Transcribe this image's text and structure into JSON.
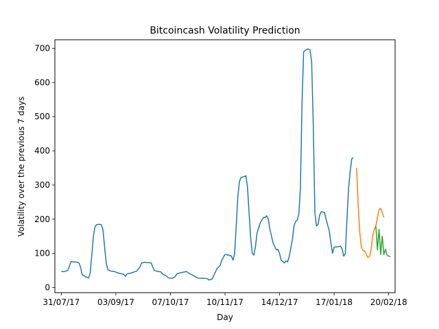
{
  "chart_data": {
    "type": "line",
    "title": "Bitcoincash Volatility Prediction",
    "xlabel": "Day",
    "ylabel": "Volatility over the previous 7 days",
    "xlim": [
      "2017-07-27",
      "2018-02-24"
    ],
    "ylim": [
      -15,
      725
    ],
    "x_ticks": [
      {
        "date": "2017-07-31",
        "label": "31/07/17"
      },
      {
        "date": "2017-09-03",
        "label": "03/09/17"
      },
      {
        "date": "2017-10-07",
        "label": "07/10/17"
      },
      {
        "date": "2017-11-10",
        "label": "10/11/17"
      },
      {
        "date": "2017-12-14",
        "label": "14/12/17"
      },
      {
        "date": "2018-01-17",
        "label": "17/01/18"
      },
      {
        "date": "2018-02-20",
        "label": "20/02/18"
      }
    ],
    "y_ticks": [
      0,
      100,
      200,
      300,
      400,
      500,
      600,
      700
    ],
    "grid": false,
    "legend": "none",
    "series": [
      {
        "color": "#1f77b4",
        "points": [
          [
            "2017-07-31",
            47
          ],
          [
            "2017-08-02",
            47
          ],
          [
            "2017-08-04",
            50
          ],
          [
            "2017-08-05",
            62
          ],
          [
            "2017-08-06",
            76
          ],
          [
            "2017-08-08",
            75
          ],
          [
            "2017-08-10",
            74
          ],
          [
            "2017-08-11",
            72
          ],
          [
            "2017-08-12",
            60
          ],
          [
            "2017-08-13",
            38
          ],
          [
            "2017-08-15",
            32
          ],
          [
            "2017-08-17",
            28
          ],
          [
            "2017-08-18",
            42
          ],
          [
            "2017-08-19",
            95
          ],
          [
            "2017-08-20",
            150
          ],
          [
            "2017-08-21",
            178
          ],
          [
            "2017-08-22",
            184
          ],
          [
            "2017-08-24",
            185
          ],
          [
            "2017-08-25",
            184
          ],
          [
            "2017-08-26",
            168
          ],
          [
            "2017-08-27",
            118
          ],
          [
            "2017-08-28",
            72
          ],
          [
            "2017-08-29",
            52
          ],
          [
            "2017-08-31",
            48
          ],
          [
            "2017-09-02",
            47
          ],
          [
            "2017-09-04",
            43
          ],
          [
            "2017-09-06",
            41
          ],
          [
            "2017-09-08",
            38
          ],
          [
            "2017-09-09",
            33
          ],
          [
            "2017-09-10",
            40
          ],
          [
            "2017-09-12",
            42
          ],
          [
            "2017-09-14",
            45
          ],
          [
            "2017-09-16",
            48
          ],
          [
            "2017-09-18",
            60
          ],
          [
            "2017-09-19",
            72
          ],
          [
            "2017-09-21",
            74
          ],
          [
            "2017-09-23",
            73
          ],
          [
            "2017-09-25",
            72
          ],
          [
            "2017-09-26",
            60
          ],
          [
            "2017-09-27",
            50
          ],
          [
            "2017-09-29",
            47
          ],
          [
            "2017-10-01",
            46
          ],
          [
            "2017-10-02",
            40
          ],
          [
            "2017-10-04",
            35
          ],
          [
            "2017-10-06",
            28
          ],
          [
            "2017-10-08",
            27
          ],
          [
            "2017-10-10",
            32
          ],
          [
            "2017-10-11",
            40
          ],
          [
            "2017-10-13",
            43
          ],
          [
            "2017-10-15",
            45
          ],
          [
            "2017-10-17",
            47
          ],
          [
            "2017-10-19",
            40
          ],
          [
            "2017-10-21",
            36
          ],
          [
            "2017-10-22",
            33
          ],
          [
            "2017-10-24",
            28
          ],
          [
            "2017-10-26",
            27
          ],
          [
            "2017-10-28",
            27
          ],
          [
            "2017-10-30",
            26
          ],
          [
            "2017-10-31",
            22
          ],
          [
            "2017-11-02",
            25
          ],
          [
            "2017-11-03",
            35
          ],
          [
            "2017-11-05",
            55
          ],
          [
            "2017-11-07",
            65
          ],
          [
            "2017-11-08",
            80
          ],
          [
            "2017-11-10",
            97
          ],
          [
            "2017-11-12",
            95
          ],
          [
            "2017-11-14",
            92
          ],
          [
            "2017-11-15",
            80
          ],
          [
            "2017-11-16",
            100
          ],
          [
            "2017-11-17",
            180
          ],
          [
            "2017-11-18",
            265
          ],
          [
            "2017-11-19",
            310
          ],
          [
            "2017-11-20",
            322
          ],
          [
            "2017-11-22",
            325
          ],
          [
            "2017-11-23",
            327
          ],
          [
            "2017-11-24",
            295
          ],
          [
            "2017-11-25",
            220
          ],
          [
            "2017-11-26",
            145
          ],
          [
            "2017-11-27",
            100
          ],
          [
            "2017-11-28",
            95
          ],
          [
            "2017-11-29",
            120
          ],
          [
            "2017-11-30",
            160
          ],
          [
            "2017-12-02",
            190
          ],
          [
            "2017-12-04",
            205
          ],
          [
            "2017-12-05",
            205
          ],
          [
            "2017-12-06",
            210
          ],
          [
            "2017-12-07",
            200
          ],
          [
            "2017-12-08",
            170
          ],
          [
            "2017-12-10",
            130
          ],
          [
            "2017-12-12",
            110
          ],
          [
            "2017-12-13",
            112
          ],
          [
            "2017-12-14",
            100
          ],
          [
            "2017-12-15",
            80
          ],
          [
            "2017-12-17",
            72
          ],
          [
            "2017-12-18",
            78
          ],
          [
            "2017-12-19",
            75
          ],
          [
            "2017-12-20",
            90
          ],
          [
            "2017-12-22",
            140
          ],
          [
            "2017-12-23",
            180
          ],
          [
            "2017-12-24",
            193
          ],
          [
            "2017-12-25",
            197
          ],
          [
            "2017-12-26",
            215
          ],
          [
            "2017-12-27",
            290
          ],
          [
            "2017-12-28",
            540
          ],
          [
            "2017-12-29",
            690
          ],
          [
            "2017-12-31",
            697
          ],
          [
            "2018-01-01",
            698
          ],
          [
            "2018-01-02",
            695
          ],
          [
            "2018-01-03",
            660
          ],
          [
            "2018-01-04",
            480
          ],
          [
            "2018-01-05",
            220
          ],
          [
            "2018-01-06",
            180
          ],
          [
            "2018-01-07",
            185
          ],
          [
            "2018-01-08",
            212
          ],
          [
            "2018-01-09",
            222
          ],
          [
            "2018-01-11",
            220
          ],
          [
            "2018-01-12",
            200
          ],
          [
            "2018-01-14",
            165
          ],
          [
            "2018-01-15",
            130
          ],
          [
            "2018-01-16",
            100
          ],
          [
            "2018-01-17",
            118
          ],
          [
            "2018-01-19",
            119
          ],
          [
            "2018-01-21",
            121
          ],
          [
            "2018-01-22",
            112
          ],
          [
            "2018-01-23",
            92
          ],
          [
            "2018-01-24",
            100
          ],
          [
            "2018-01-25",
            200
          ],
          [
            "2018-01-26",
            290
          ],
          [
            "2018-01-27",
            340
          ],
          [
            "2018-01-28",
            377
          ],
          [
            "2018-01-29",
            380
          ]
        ]
      },
      {
        "color": "#ff7f0e",
        "points": [
          [
            "2018-01-31",
            350
          ],
          [
            "2018-02-01",
            240
          ],
          [
            "2018-02-02",
            160
          ],
          [
            "2018-02-03",
            117
          ],
          [
            "2018-02-04",
            108
          ],
          [
            "2018-02-05",
            107
          ],
          [
            "2018-02-06",
            98
          ],
          [
            "2018-02-07",
            88
          ],
          [
            "2018-02-08",
            90
          ],
          [
            "2018-02-09",
            110
          ],
          [
            "2018-02-10",
            150
          ],
          [
            "2018-02-11",
            170
          ],
          [
            "2018-02-12",
            180
          ],
          [
            "2018-02-13",
            205
          ],
          [
            "2018-02-14",
            228
          ],
          [
            "2018-02-15",
            232
          ],
          [
            "2018-02-16",
            220
          ],
          [
            "2018-02-17",
            205
          ]
        ]
      },
      {
        "color": "#2ca02c",
        "points": [
          [
            "2018-02-12",
            180
          ],
          [
            "2018-02-13",
            110
          ],
          [
            "2018-02-14",
            170
          ],
          [
            "2018-02-15",
            97
          ],
          [
            "2018-02-16",
            150
          ],
          [
            "2018-02-17",
            97
          ],
          [
            "2018-02-18",
            112
          ],
          [
            "2018-02-19",
            95
          ],
          [
            "2018-02-20",
            92
          ],
          [
            "2018-02-21",
            90
          ]
        ]
      }
    ]
  }
}
